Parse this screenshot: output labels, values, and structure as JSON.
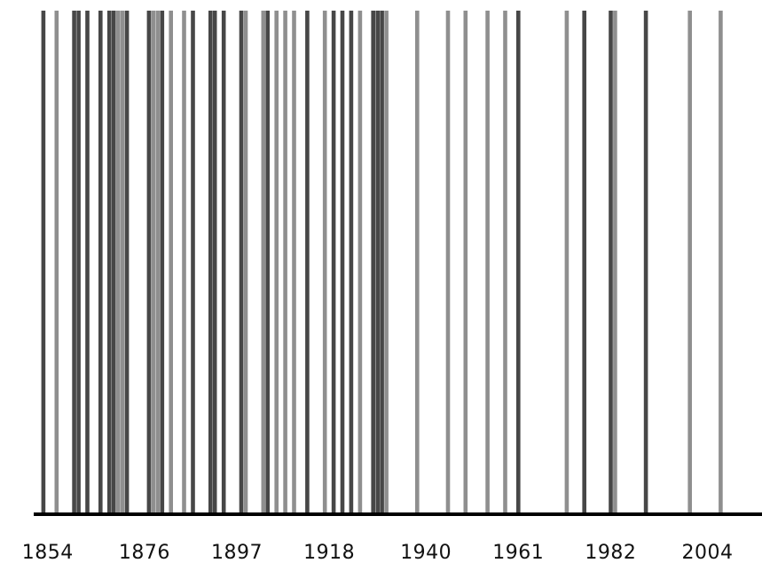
{
  "chart_data": {
    "type": "event-timeline",
    "title": "",
    "xlabel": "",
    "ylabel": "",
    "xlim": [
      1850,
      2016
    ],
    "x_ticks": [
      1854,
      1876,
      1897,
      1918,
      1940,
      1961,
      1982,
      2004
    ],
    "grid": false,
    "legend": "none",
    "colors": {
      "dark": "#474747",
      "light": "#8f8f8f",
      "axis": "#000000"
    },
    "events": [
      {
        "year": 1853,
        "tone": "dark"
      },
      {
        "year": 1856,
        "tone": "light"
      },
      {
        "year": 1860,
        "tone": "dark"
      },
      {
        "year": 1861,
        "tone": "dark"
      },
      {
        "year": 1863,
        "tone": "dark"
      },
      {
        "year": 1866,
        "tone": "dark"
      },
      {
        "year": 1868,
        "tone": "dark"
      },
      {
        "year": 1869,
        "tone": "dark"
      },
      {
        "year": 1870,
        "tone": "light"
      },
      {
        "year": 1871,
        "tone": "light"
      },
      {
        "year": 1872,
        "tone": "dark"
      },
      {
        "year": 1877,
        "tone": "dark"
      },
      {
        "year": 1878,
        "tone": "light"
      },
      {
        "year": 1879,
        "tone": "light"
      },
      {
        "year": 1880,
        "tone": "dark"
      },
      {
        "year": 1882,
        "tone": "light"
      },
      {
        "year": 1885,
        "tone": "light"
      },
      {
        "year": 1887,
        "tone": "dark"
      },
      {
        "year": 1891,
        "tone": "dark"
      },
      {
        "year": 1892,
        "tone": "dark"
      },
      {
        "year": 1894,
        "tone": "dark"
      },
      {
        "year": 1898,
        "tone": "dark"
      },
      {
        "year": 1899,
        "tone": "light"
      },
      {
        "year": 1903,
        "tone": "light"
      },
      {
        "year": 1904,
        "tone": "dark"
      },
      {
        "year": 1906,
        "tone": "light"
      },
      {
        "year": 1908,
        "tone": "light"
      },
      {
        "year": 1910,
        "tone": "light"
      },
      {
        "year": 1913,
        "tone": "dark"
      },
      {
        "year": 1917,
        "tone": "light"
      },
      {
        "year": 1919,
        "tone": "dark"
      },
      {
        "year": 1921,
        "tone": "dark"
      },
      {
        "year": 1923,
        "tone": "dark"
      },
      {
        "year": 1925,
        "tone": "light"
      },
      {
        "year": 1928,
        "tone": "dark"
      },
      {
        "year": 1929,
        "tone": "dark"
      },
      {
        "year": 1930,
        "tone": "dark"
      },
      {
        "year": 1931,
        "tone": "light"
      },
      {
        "year": 1938,
        "tone": "light"
      },
      {
        "year": 1945,
        "tone": "light"
      },
      {
        "year": 1949,
        "tone": "light"
      },
      {
        "year": 1954,
        "tone": "light"
      },
      {
        "year": 1958,
        "tone": "light"
      },
      {
        "year": 1961,
        "tone": "dark"
      },
      {
        "year": 1972,
        "tone": "light"
      },
      {
        "year": 1976,
        "tone": "dark"
      },
      {
        "year": 1982,
        "tone": "dark"
      },
      {
        "year": 1983,
        "tone": "light"
      },
      {
        "year": 1990,
        "tone": "dark"
      },
      {
        "year": 2000,
        "tone": "light"
      },
      {
        "year": 2007,
        "tone": "light"
      }
    ]
  }
}
